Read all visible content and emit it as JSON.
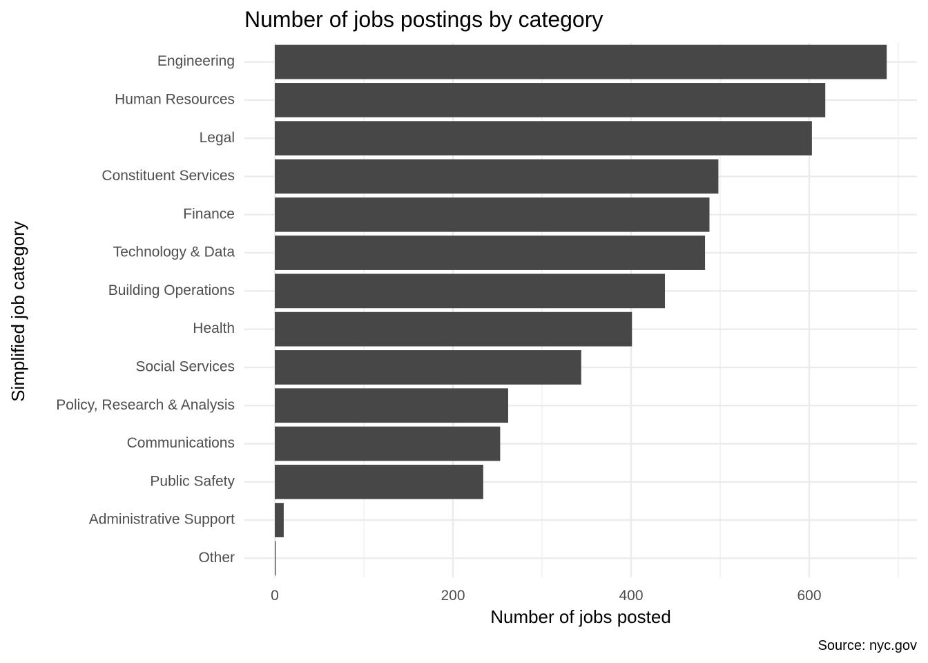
{
  "chart_data": {
    "type": "bar",
    "orientation": "horizontal",
    "title": "Number of jobs postings by category",
    "xlabel": "Number of jobs posted",
    "ylabel": "Simplified job category",
    "caption": "Source: nyc.gov",
    "categories": [
      "Engineering",
      "Human Resources",
      "Legal",
      "Constituent Services",
      "Finance",
      "Technology & Data",
      "Building Operations",
      "Health",
      "Social Services",
      "Policy, Research & Analysis",
      "Communications",
      "Public Safety",
      "Administrative Support",
      "Other"
    ],
    "values": [
      687,
      618,
      603,
      498,
      488,
      483,
      438,
      401,
      344,
      262,
      253,
      234,
      10,
      1
    ],
    "xlim": [
      0,
      700
    ],
    "x_ticks": [
      0,
      200,
      400,
      600
    ],
    "bar_color": "#474747",
    "grid": true,
    "legend": "none"
  }
}
